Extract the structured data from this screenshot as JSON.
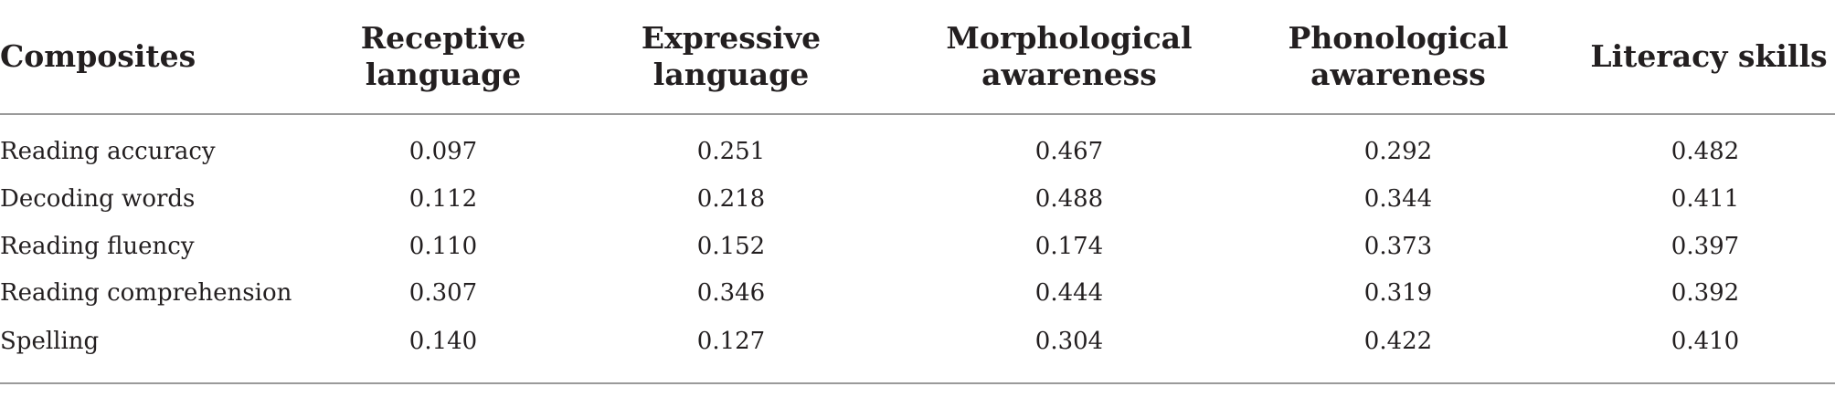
{
  "table": {
    "headers": [
      "Composites",
      "Receptive\nlanguage",
      "Expressive\nlanguage",
      "Morphological\nawareness",
      "Phonological\nawareness",
      "Literacy skills"
    ],
    "rows": [
      {
        "label": "Reading accuracy",
        "values": [
          "0.097",
          "0.251",
          "0.467",
          "0.292",
          "0.482"
        ]
      },
      {
        "label": "Decoding words",
        "values": [
          "0.112",
          "0.218",
          "0.488",
          "0.344",
          "0.411"
        ]
      },
      {
        "label": "Reading fluency",
        "values": [
          "0.110",
          "0.152",
          "0.174",
          "0.373",
          "0.397"
        ]
      },
      {
        "label": "Reading comprehension",
        "values": [
          "0.307",
          "0.346",
          "0.444",
          "0.319",
          "0.392"
        ]
      },
      {
        "label": "Spelling",
        "values": [
          "0.140",
          "0.127",
          "0.304",
          "0.422",
          "0.410"
        ]
      }
    ]
  }
}
